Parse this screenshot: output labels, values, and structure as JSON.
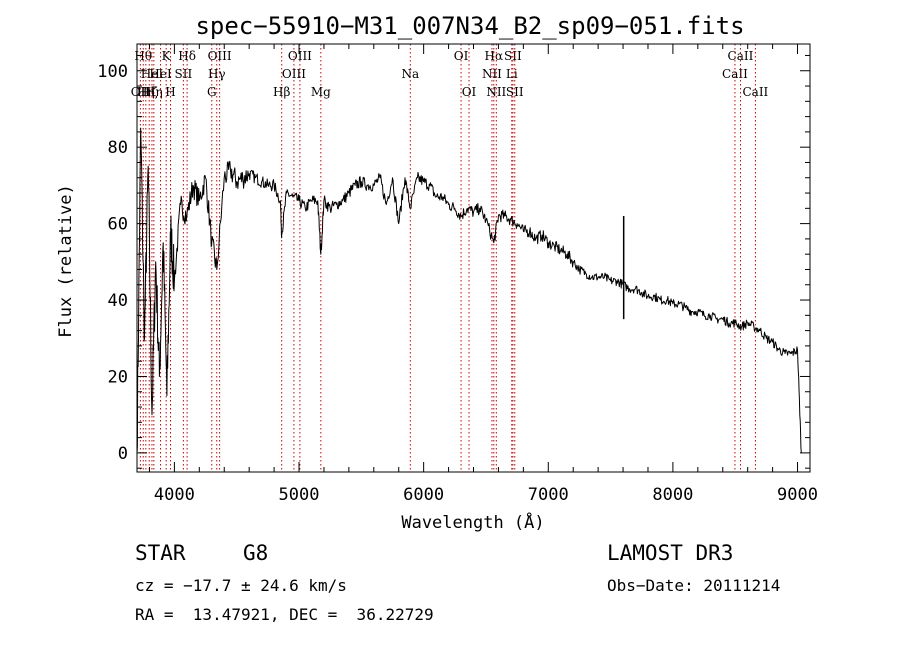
{
  "chart_data": {
    "type": "line",
    "title": "spec−55910−M31_007N34_B2_sp09−051.fits",
    "xlabel": "Wavelength (Å)",
    "ylabel": "Flux (relative)",
    "xlim": [
      3700,
      9100
    ],
    "ylim": [
      -5,
      107
    ],
    "xticks": [
      4000,
      5000,
      6000,
      7000,
      8000,
      9000
    ],
    "yticks": [
      0,
      20,
      40,
      60,
      80,
      100
    ],
    "grid": false,
    "series": [
      {
        "name": "spectrum",
        "x": [
          3700,
          3730,
          3760,
          3790,
          3820,
          3850,
          3880,
          3910,
          3940,
          3970,
          4000,
          4050,
          4100,
          4150,
          4200,
          4250,
          4300,
          4340,
          4400,
          4450,
          4500,
          4550,
          4600,
          4650,
          4700,
          4750,
          4800,
          4850,
          4861,
          4900,
          4950,
          5000,
          5050,
          5100,
          5150,
          5175,
          5200,
          5250,
          5300,
          5350,
          5400,
          5450,
          5500,
          5550,
          5600,
          5650,
          5700,
          5750,
          5800,
          5850,
          5893,
          5950,
          6000,
          6050,
          6100,
          6150,
          6200,
          6250,
          6300,
          6350,
          6400,
          6450,
          6500,
          6563,
          6600,
          6650,
          6700,
          6750,
          6800,
          6850,
          6900,
          6950,
          7000,
          7050,
          7100,
          7150,
          7200,
          7250,
          7300,
          7350,
          7400,
          7450,
          7500,
          7550,
          7600,
          7650,
          7700,
          7750,
          7800,
          7850,
          7900,
          7950,
          8000,
          8050,
          8100,
          8150,
          8200,
          8250,
          8300,
          8350,
          8400,
          8450,
          8500,
          8550,
          8600,
          8650,
          8700,
          8750,
          8800,
          8850,
          8900,
          8950,
          9000,
          9030
        ],
        "values": [
          0,
          85,
          30,
          75,
          10,
          50,
          20,
          55,
          15,
          58,
          45,
          65,
          62,
          70,
          66,
          72,
          55,
          48,
          72,
          74,
          71,
          72,
          73,
          72,
          71,
          70,
          70,
          66,
          57,
          68,
          67,
          66,
          64,
          66,
          66,
          52,
          66,
          64,
          65,
          66,
          68,
          70,
          71,
          70,
          70,
          72,
          65,
          72,
          60,
          72,
          64,
          72,
          71,
          70,
          67,
          67,
          65,
          64,
          62,
          64,
          63,
          64,
          61,
          55,
          62,
          62,
          61,
          60,
          58,
          58,
          56,
          57,
          55,
          54,
          53,
          52,
          50,
          48,
          47,
          46,
          46,
          46,
          45,
          45,
          44,
          43,
          43,
          42,
          41,
          41,
          40,
          40,
          39,
          39,
          38,
          37,
          37,
          36,
          36,
          35,
          35,
          34,
          34,
          33,
          34,
          33,
          32,
          30,
          29,
          27,
          26,
          26,
          27,
          0
        ]
      }
    ],
    "spikes": [
      {
        "x": 7605,
        "top": 62,
        "bottom": 35
      }
    ],
    "lines": [
      {
        "x": 3727,
        "label": "OII",
        "row": 3
      },
      {
        "x": 3750,
        "label": "Hθ",
        "row": 1
      },
      {
        "x": 3771,
        "label": "Hη",
        "row": 3
      },
      {
        "x": 3798,
        "label": "Hζ",
        "row": 3
      },
      {
        "x": 3820,
        "label": "HeI",
        "row": 2
      },
      {
        "x": 3835,
        "label": "Hη",
        "row": 3
      },
      {
        "x": 3889,
        "label": "HeI",
        "row": 2
      },
      {
        "x": 3934,
        "label": "K",
        "row": 1
      },
      {
        "x": 3969,
        "label": "H",
        "row": 3
      },
      {
        "x": 4072,
        "label": "SII",
        "row": 2
      },
      {
        "x": 4102,
        "label": "Hδ",
        "row": 1
      },
      {
        "x": 4300,
        "label": "G",
        "row": 3
      },
      {
        "x": 4340,
        "label": "Hγ",
        "row": 2
      },
      {
        "x": 4363,
        "label": "OIII",
        "row": 1
      },
      {
        "x": 4861,
        "label": "Hβ",
        "row": 3
      },
      {
        "x": 4959,
        "label": "OIII",
        "row": 2
      },
      {
        "x": 5007,
        "label": "OIII",
        "row": 1
      },
      {
        "x": 5175,
        "label": "Mg",
        "row": 3
      },
      {
        "x": 5893,
        "label": "Na",
        "row": 2
      },
      {
        "x": 6300,
        "label": "OI",
        "row": 1
      },
      {
        "x": 6364,
        "label": "OI",
        "row": 3
      },
      {
        "x": 6548,
        "label": "NII",
        "row": 2
      },
      {
        "x": 6563,
        "label": "Hα",
        "row": 1
      },
      {
        "x": 6583,
        "label": "NII",
        "row": 3
      },
      {
        "x": 6707,
        "label": "Li",
        "row": 2
      },
      {
        "x": 6716,
        "label": "SII",
        "row": 1
      },
      {
        "x": 6731,
        "label": "SII",
        "row": 3
      },
      {
        "x": 8498,
        "label": "CaII",
        "row": 2
      },
      {
        "x": 8542,
        "label": "CaII",
        "row": 1
      },
      {
        "x": 8662,
        "label": "CaII",
        "row": 3
      }
    ]
  },
  "info": {
    "class_label": "STAR",
    "subclass": "G8",
    "survey": "LAMOST DR3",
    "cz": "cz = −17.7 ± 24.6 km/s",
    "obs_date": "Obs−Date: 20111214",
    "radec": "RA =  13.47921, DEC =  36.22729"
  },
  "colors": {
    "axis": "#000000",
    "spectrum": "#000000",
    "line_marker": "#cc0000",
    "background": "#ffffff"
  }
}
